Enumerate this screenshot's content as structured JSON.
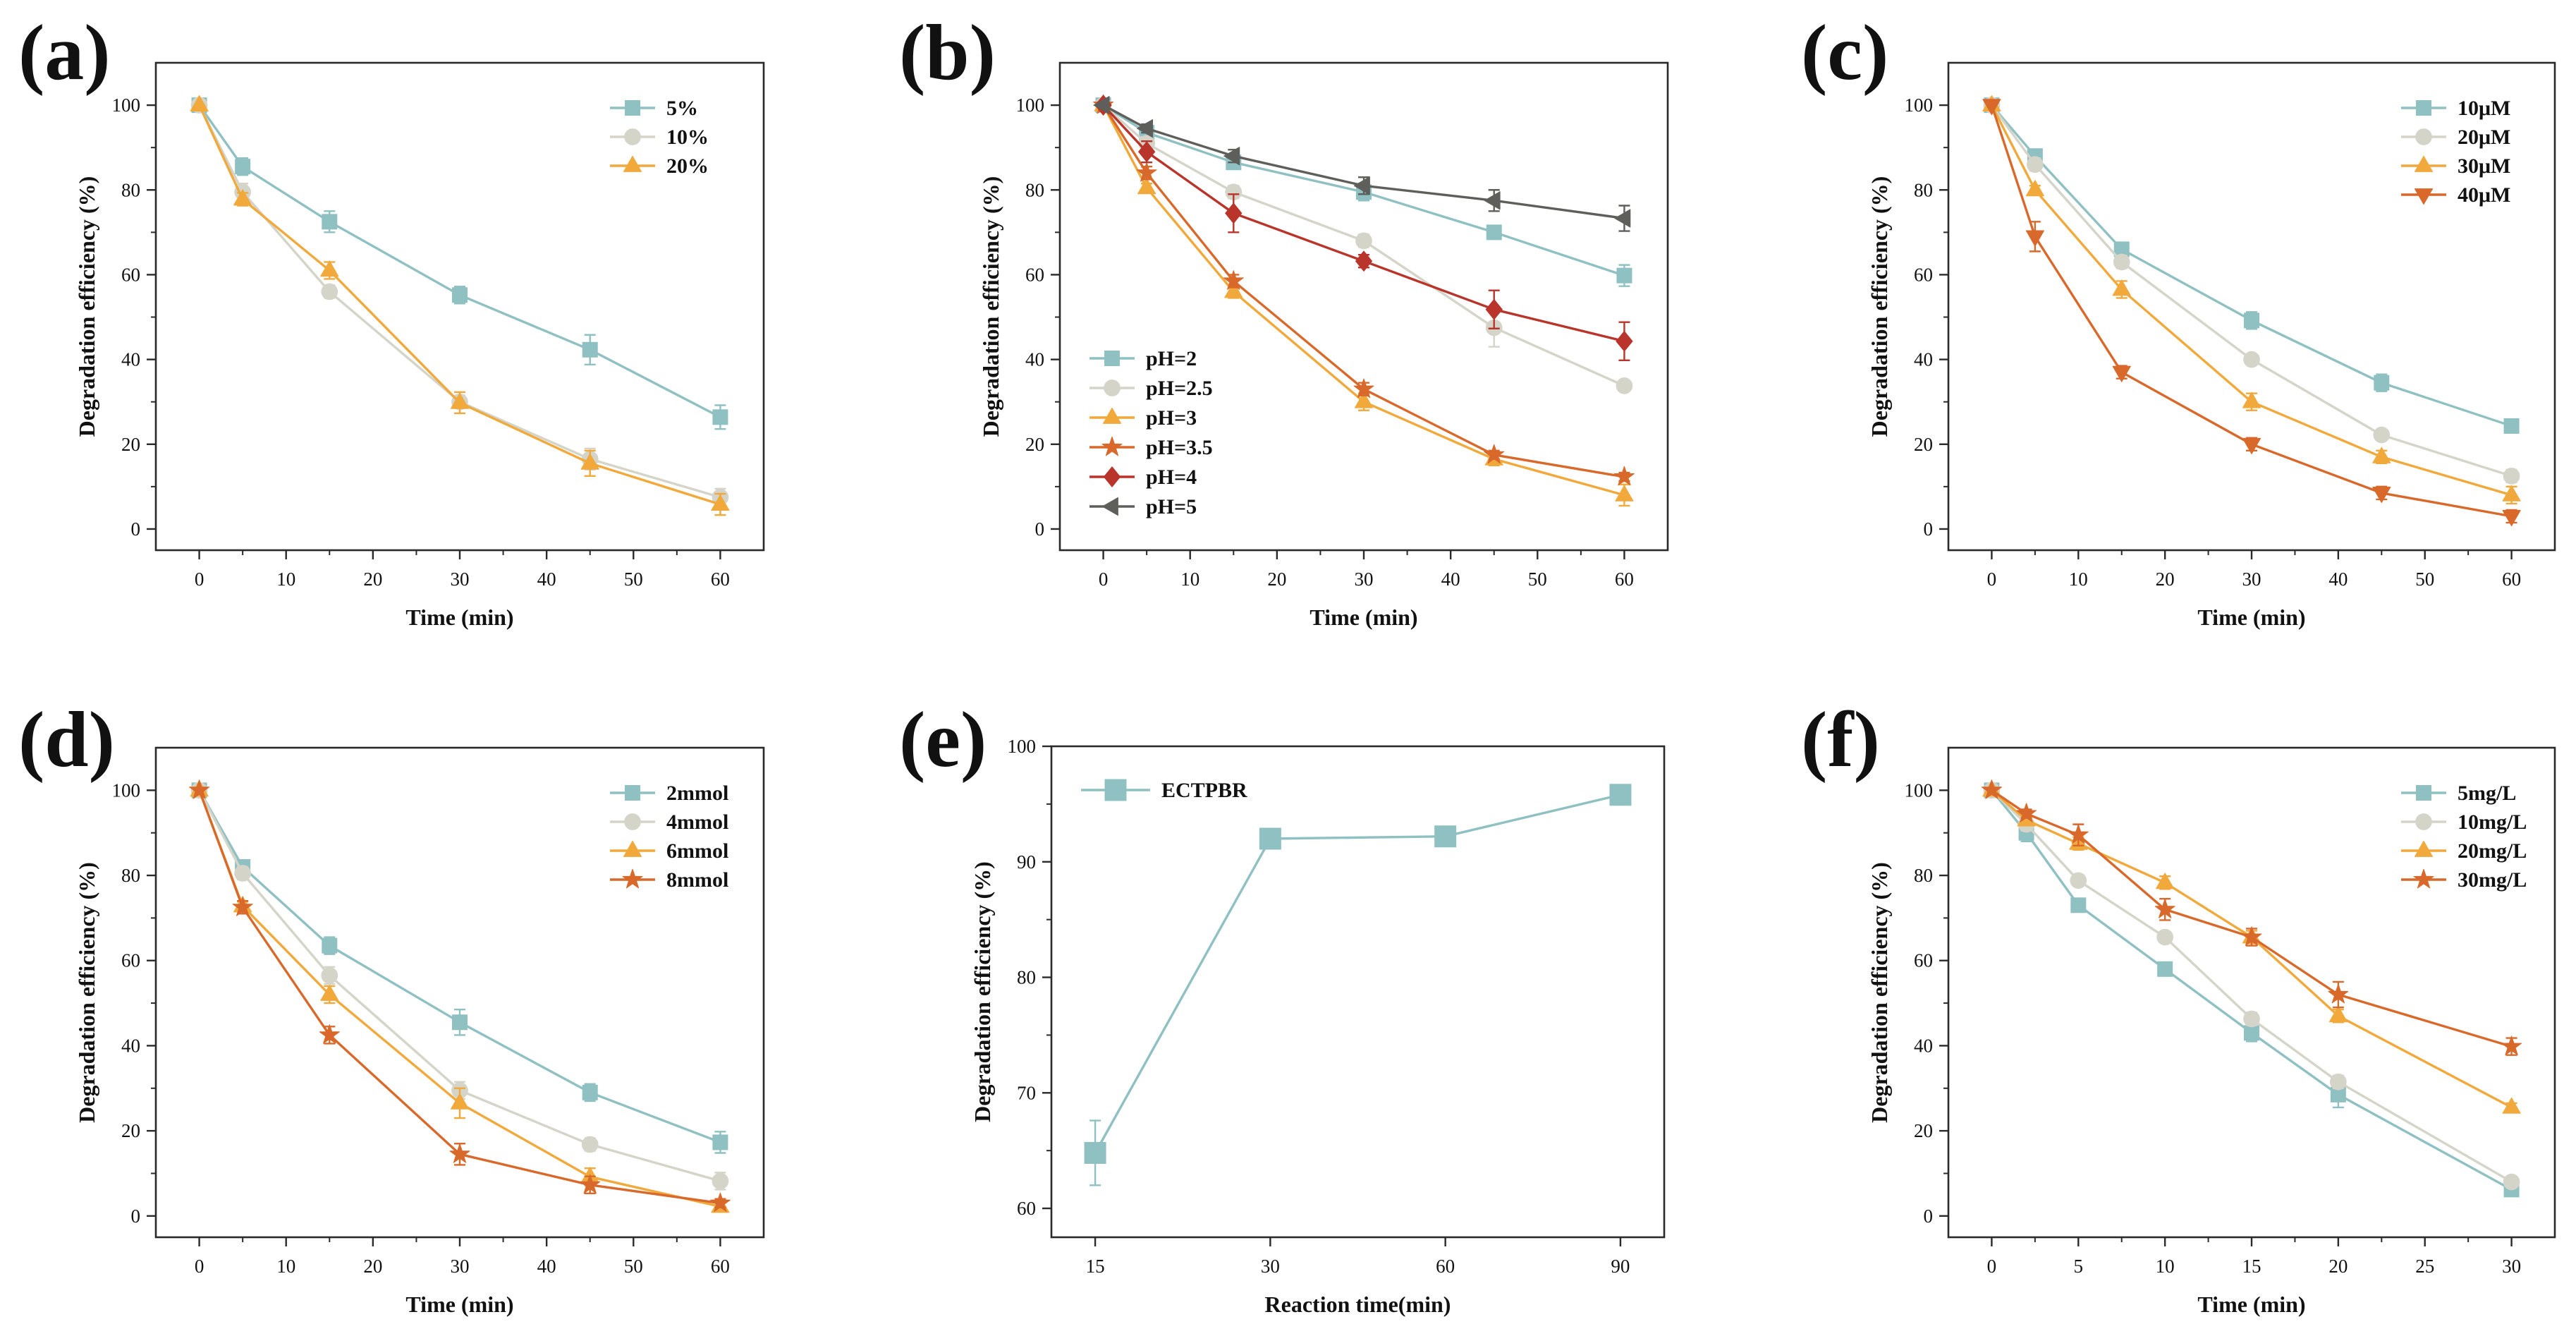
{
  "chart_data": [
    {
      "panel_label": "(a)",
      "type": "line",
      "x": [
        0,
        5,
        15,
        30,
        45,
        60
      ],
      "xlabel": "Time (min)",
      "ylabel": "Degradation efficiency (%)",
      "xlim": [
        -5,
        65
      ],
      "ylim": [
        -5,
        110
      ],
      "xticks": [
        0,
        10,
        20,
        30,
        40,
        50,
        60
      ],
      "yticks": [
        0,
        20,
        40,
        60,
        80,
        100
      ],
      "legend_position": "top-right",
      "series": [
        {
          "name": "5%",
          "color": "#8fc0c2",
          "marker": "square",
          "values": [
            100,
            85.5,
            72.5,
            55.2,
            42.3,
            26.4
          ],
          "errors": [
            0,
            2,
            2.5,
            2,
            3.5,
            2.8
          ]
        },
        {
          "name": "10%",
          "color": "#d4d4c9",
          "marker": "circle",
          "values": [
            100,
            79.5,
            56.0,
            30.0,
            16.5,
            7.5
          ],
          "errors": [
            0,
            2,
            1.5,
            1.5,
            2.5,
            2
          ]
        },
        {
          "name": "20%",
          "color": "#f1a93c",
          "marker": "triangle-up",
          "values": [
            100,
            77.8,
            61.0,
            29.8,
            15.5,
            5.8
          ],
          "errors": [
            0,
            1.5,
            2,
            2.5,
            3,
            2.5
          ]
        }
      ]
    },
    {
      "panel_label": "(b)",
      "type": "line",
      "x": [
        0,
        5,
        15,
        30,
        45,
        60
      ],
      "xlabel": "Time (min)",
      "ylabel": "Degradation efficiency (%)",
      "xlim": [
        -5,
        65
      ],
      "ylim": [
        -5,
        110
      ],
      "xticks": [
        0,
        10,
        20,
        30,
        40,
        50,
        60
      ],
      "yticks": [
        0,
        20,
        40,
        60,
        80,
        100
      ],
      "legend_position": "bottom-left",
      "series": [
        {
          "name": "pH=2",
          "color": "#8fc0c2",
          "marker": "square",
          "values": [
            100,
            93.5,
            86.5,
            79.5,
            70.0,
            59.8
          ],
          "errors": [
            0,
            1,
            1.5,
            2,
            1.5,
            2.5
          ]
        },
        {
          "name": "pH=2.5",
          "color": "#d4d4c9",
          "marker": "circle",
          "values": [
            100,
            91.0,
            79.5,
            68.0,
            47.5,
            33.8
          ],
          "errors": [
            0,
            1.5,
            1.5,
            1.5,
            4.5,
            1
          ]
        },
        {
          "name": "pH=3",
          "color": "#f1a93c",
          "marker": "triangle-up",
          "values": [
            100,
            80.5,
            56.0,
            30.0,
            16.5,
            8.0
          ],
          "errors": [
            0,
            1,
            1.5,
            2,
            1.5,
            2.5
          ]
        },
        {
          "name": "pH=3.5",
          "color": "#d9692a",
          "marker": "star",
          "values": [
            100,
            84.0,
            58.5,
            33.0,
            17.5,
            12.3
          ],
          "errors": [
            0,
            1.5,
            1.5,
            1.5,
            1,
            1
          ]
        },
        {
          "name": "pH=4",
          "color": "#b9342a",
          "marker": "diamond",
          "values": [
            100,
            89.0,
            74.5,
            63.2,
            51.8,
            44.3
          ],
          "errors": [
            0,
            2.5,
            4.5,
            1.5,
            4.5,
            4.5
          ]
        },
        {
          "name": "pH=5",
          "color": "#5e5f5b",
          "marker": "triangle-left",
          "values": [
            100,
            94.5,
            88.0,
            81.0,
            77.5,
            73.3
          ],
          "errors": [
            0,
            1,
            1.5,
            2,
            2.5,
            3
          ]
        }
      ]
    },
    {
      "panel_label": "(c)",
      "type": "line",
      "x": [
        0,
        5,
        15,
        30,
        45,
        60
      ],
      "xlabel": "Time (min)",
      "ylabel": "Degradation efficiency (%)",
      "xlim": [
        -5,
        65
      ],
      "ylim": [
        -5,
        110
      ],
      "xticks": [
        0,
        10,
        20,
        30,
        40,
        50,
        60
      ],
      "yticks": [
        0,
        20,
        40,
        60,
        80,
        100
      ],
      "legend_position": "top-right",
      "series": [
        {
          "name": "10μM",
          "color": "#8fc0c2",
          "marker": "square",
          "values": [
            100,
            88.0,
            66.0,
            49.2,
            34.5,
            24.3
          ],
          "errors": [
            0,
            1.5,
            1.5,
            2,
            2,
            1
          ]
        },
        {
          "name": "20μM",
          "color": "#d4d4c9",
          "marker": "circle",
          "values": [
            100,
            86.0,
            63.0,
            40.0,
            22.2,
            12.5
          ],
          "errors": [
            0,
            1.5,
            1.5,
            1,
            1,
            1.5
          ]
        },
        {
          "name": "30μM",
          "color": "#f1a93c",
          "marker": "triangle-up",
          "values": [
            100,
            80.0,
            56.5,
            30.0,
            17.0,
            8.0
          ],
          "errors": [
            0,
            1,
            2,
            2,
            1.5,
            2
          ]
        },
        {
          "name": "40μM",
          "color": "#d9692a",
          "marker": "triangle-down",
          "values": [
            100,
            69.0,
            37.0,
            20.0,
            8.5,
            3.0
          ],
          "errors": [
            0,
            3.5,
            1.5,
            1.5,
            1.5,
            1.5
          ]
        }
      ]
    },
    {
      "panel_label": "(d)",
      "type": "line",
      "x": [
        0,
        5,
        15,
        30,
        45,
        60
      ],
      "xlabel": "Time (min)",
      "ylabel": "Degradation efficiency (%)",
      "xlim": [
        -5,
        65
      ],
      "ylim": [
        -5,
        110
      ],
      "xticks": [
        0,
        10,
        20,
        30,
        40,
        50,
        60
      ],
      "yticks": [
        0,
        20,
        40,
        60,
        80,
        100
      ],
      "legend_position": "top-right",
      "series": [
        {
          "name": "2mmol",
          "color": "#8fc0c2",
          "marker": "square",
          "values": [
            100,
            82.0,
            63.5,
            45.5,
            29.0,
            17.3
          ],
          "errors": [
            0,
            1,
            2,
            3,
            2,
            2.5
          ]
        },
        {
          "name": "4mmol",
          "color": "#d4d4c9",
          "marker": "circle",
          "values": [
            100,
            80.5,
            56.5,
            29.5,
            16.8,
            8.2
          ],
          "errors": [
            0,
            1.5,
            2,
            2,
            1.5,
            2
          ]
        },
        {
          "name": "6mmol",
          "color": "#f1a93c",
          "marker": "triangle-up",
          "values": [
            100,
            72.8,
            52.0,
            26.5,
            9.2,
            2.2
          ],
          "errors": [
            0,
            1,
            2,
            3.5,
            2,
            1
          ]
        },
        {
          "name": "8mmol",
          "color": "#d9692a",
          "marker": "star",
          "values": [
            100,
            72.5,
            42.5,
            14.5,
            7.3,
            3.0
          ],
          "errors": [
            0,
            1.5,
            2,
            2.5,
            2,
            1
          ]
        }
      ]
    },
    {
      "panel_label": "(e)",
      "type": "line",
      "categories": [
        "15",
        "30",
        "60",
        "90"
      ],
      "xlabel": "Reaction time(min)",
      "ylabel": "Degradation efficiency (%)",
      "xlim": [
        -0.25,
        3.25
      ],
      "ylim": [
        57.5,
        100
      ],
      "yticks": [
        60,
        70,
        80,
        90,
        100
      ],
      "legend_position": "top-left",
      "series": [
        {
          "name": "ECTPBR",
          "color": "#8fc0c2",
          "marker": "square",
          "values": [
            64.8,
            92.0,
            92.2,
            95.8
          ],
          "errors": [
            2.8,
            0,
            0,
            0
          ]
        }
      ]
    },
    {
      "panel_label": "(f)",
      "type": "line",
      "x": [
        0,
        2,
        5,
        10,
        15,
        20,
        30
      ],
      "xlabel": "Time (min)",
      "ylabel": "Degradation efficiency (%)",
      "xlim": [
        -2.5,
        32.5
      ],
      "ylim": [
        -5,
        110
      ],
      "xticks": [
        0,
        5,
        10,
        15,
        20,
        25,
        30
      ],
      "yticks": [
        0,
        20,
        40,
        60,
        80,
        100
      ],
      "legend_position": "top-right",
      "series": [
        {
          "name": "5mg/L",
          "color": "#8fc0c2",
          "marker": "square",
          "values": [
            100,
            90.0,
            73.0,
            58.0,
            43.0,
            28.5,
            6.2
          ],
          "errors": [
            0,
            2,
            1,
            1,
            2,
            3,
            1
          ]
        },
        {
          "name": "10mg/L",
          "color": "#d4d4c9",
          "marker": "circle",
          "values": [
            100,
            92.0,
            78.8,
            65.5,
            46.3,
            31.5,
            8.0
          ],
          "errors": [
            0,
            1.5,
            1,
            1,
            1.5,
            1.5,
            1
          ]
        },
        {
          "name": "20mg/L",
          "color": "#f1a93c",
          "marker": "triangle-up",
          "values": [
            100,
            93.0,
            87.5,
            78.3,
            65.5,
            47.0,
            25.5
          ],
          "errors": [
            0,
            1,
            1.5,
            1.5,
            1.5,
            1.5,
            1
          ]
        },
        {
          "name": "30mg/L",
          "color": "#d9692a",
          "marker": "star",
          "values": [
            100,
            94.5,
            89.5,
            72.0,
            65.5,
            52.0,
            39.8
          ],
          "errors": [
            0,
            1,
            2.5,
            2.5,
            2,
            3,
            2
          ]
        }
      ]
    }
  ]
}
